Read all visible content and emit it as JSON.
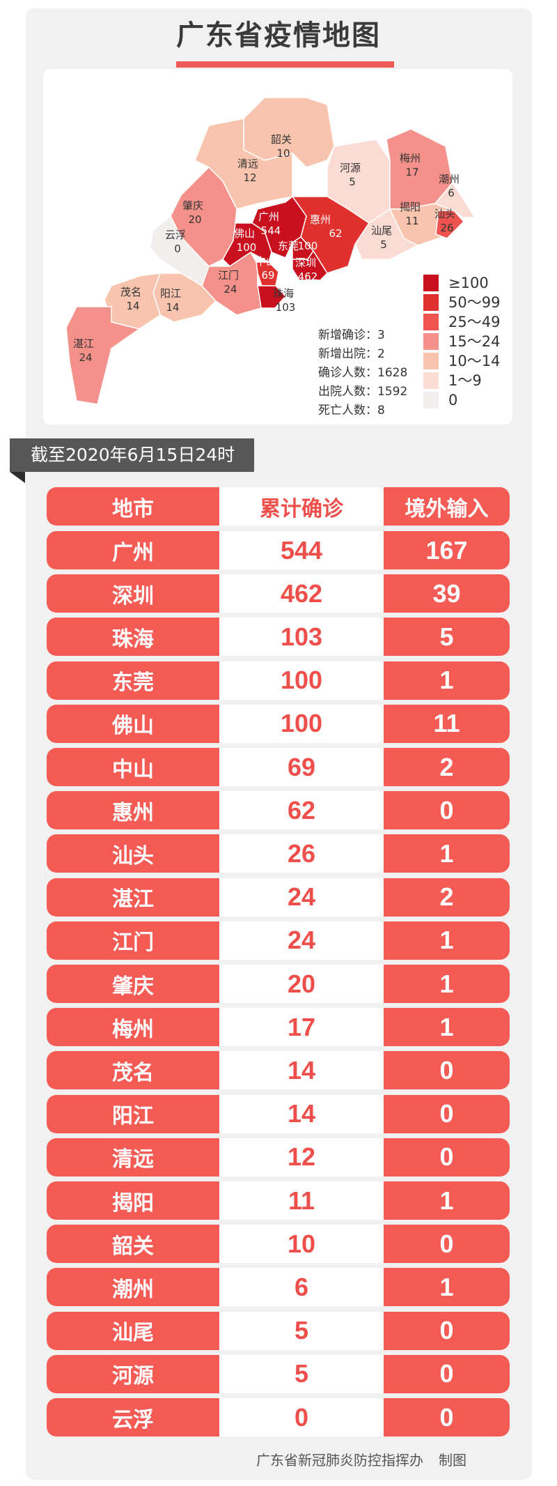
{
  "title": "广东省疫情地图",
  "colors": {
    "accent": "#ee5a55",
    "banner": "#575757"
  },
  "map": {
    "regions": [
      {
        "name": "韶关",
        "value": "10",
        "color": "#f8c4ae"
      },
      {
        "name": "清远",
        "value": "12",
        "color": "#f8c4ae"
      },
      {
        "name": "河源",
        "value": "5",
        "color": "#fbdcd5"
      },
      {
        "name": "梅州",
        "value": "17",
        "color": "#f4918a"
      },
      {
        "name": "潮州",
        "value": "6",
        "color": "#fbdcd5"
      },
      {
        "name": "揭阳",
        "value": "11",
        "color": "#f8c4ae"
      },
      {
        "name": "汕头",
        "value": "26",
        "color": "#ef5350"
      },
      {
        "name": "汕尾",
        "value": "5",
        "color": "#fbdcd5"
      },
      {
        "name": "惠州",
        "value": "62",
        "color": "#e0312f"
      },
      {
        "name": "广州",
        "value": "544",
        "color": "#c8101e"
      },
      {
        "name": "佛山",
        "value": "100",
        "color": "#c8101e"
      },
      {
        "name": "东莞",
        "value": "100",
        "color": "#c8101e"
      },
      {
        "name": "深圳",
        "value": "462",
        "color": "#c8101e"
      },
      {
        "name": "中山",
        "value": "69",
        "color": "#e0312f"
      },
      {
        "name": "珠海",
        "value": "103",
        "color": "#c8101e"
      },
      {
        "name": "江门",
        "value": "24",
        "color": "#f4918a"
      },
      {
        "name": "肇庆",
        "value": "20",
        "color": "#f4918a"
      },
      {
        "name": "云浮",
        "value": "0",
        "color": "#f3eeee"
      },
      {
        "name": "阳江",
        "value": "14",
        "color": "#f8c4ae"
      },
      {
        "name": "茂名",
        "value": "14",
        "color": "#f8c4ae"
      },
      {
        "name": "湛江",
        "value": "24",
        "color": "#f4918a"
      }
    ],
    "legend": [
      {
        "label": "≥100",
        "color": "#c8101e"
      },
      {
        "label": "50～99",
        "color": "#e0312f"
      },
      {
        "label": "25～49",
        "color": "#ef5350"
      },
      {
        "label": "15～24",
        "color": "#f4918a"
      },
      {
        "label": "10～14",
        "color": "#f8c4ae"
      },
      {
        "label": "1～9",
        "color": "#fbdcd5"
      },
      {
        "label": "0",
        "color": "#f3eeee"
      }
    ],
    "stats": [
      "新增确诊：3",
      "新增出院：2",
      "确诊人数：1628",
      "出院人数：1592",
      "死亡人数：8"
    ]
  },
  "as_of": "截至2020年6月15日24时",
  "chart_data": {
    "type": "table",
    "columns": [
      "地市",
      "累计确诊",
      "境外输入"
    ],
    "rows": [
      [
        "广州",
        "544",
        "167"
      ],
      [
        "深圳",
        "462",
        "39"
      ],
      [
        "珠海",
        "103",
        "5"
      ],
      [
        "东莞",
        "100",
        "1"
      ],
      [
        "佛山",
        "100",
        "11"
      ],
      [
        "中山",
        "69",
        "2"
      ],
      [
        "惠州",
        "62",
        "0"
      ],
      [
        "汕头",
        "26",
        "1"
      ],
      [
        "湛江",
        "24",
        "2"
      ],
      [
        "江门",
        "24",
        "1"
      ],
      [
        "肇庆",
        "20",
        "1"
      ],
      [
        "梅州",
        "17",
        "1"
      ],
      [
        "茂名",
        "14",
        "0"
      ],
      [
        "阳江",
        "14",
        "0"
      ],
      [
        "清远",
        "12",
        "0"
      ],
      [
        "揭阳",
        "11",
        "1"
      ],
      [
        "韶关",
        "10",
        "0"
      ],
      [
        "潮州",
        "6",
        "1"
      ],
      [
        "汕尾",
        "5",
        "0"
      ],
      [
        "河源",
        "5",
        "0"
      ],
      [
        "云浮",
        "0",
        "0"
      ]
    ]
  },
  "footer": {
    "org": "广东省新冠肺炎防控指挥办",
    "note": "制图"
  }
}
